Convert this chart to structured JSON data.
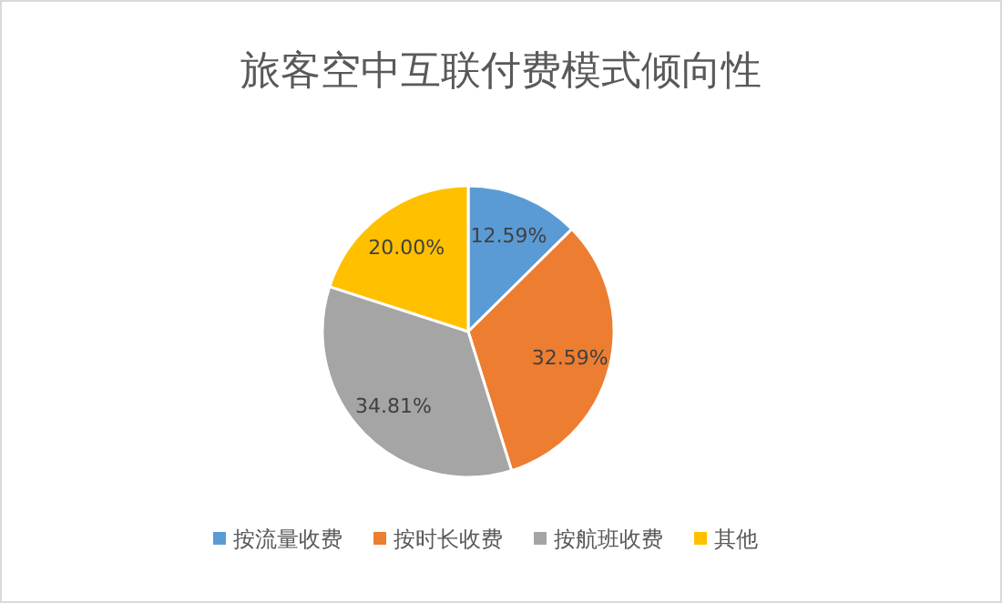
{
  "chart_data": {
    "type": "pie",
    "title": "旅客空中互联付费模式倾向性",
    "categories": [
      "按流量收费",
      "按时长收费",
      "按航班收费",
      "其他"
    ],
    "values": [
      12.59,
      32.59,
      34.81,
      20.0
    ],
    "colors": [
      "#5b9bd5",
      "#ed7d31",
      "#a5a5a5",
      "#ffc000"
    ],
    "value_labels": [
      "12.59%",
      "32.59%",
      "34.81%",
      "20.00%"
    ],
    "legend": "bottom"
  }
}
